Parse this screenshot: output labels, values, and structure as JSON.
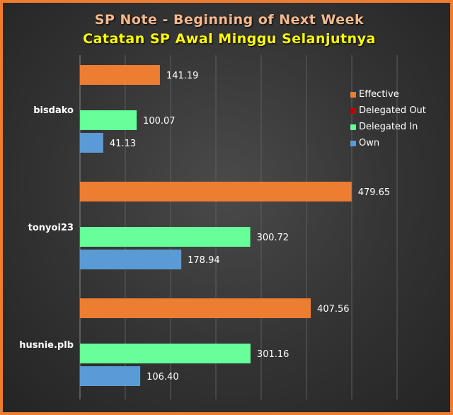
{
  "chart_data": {
    "type": "bar",
    "orientation": "horizontal",
    "title": "SP Note - Beginning of Next Week",
    "subtitle": "Catatan SP Awal Minggu Selanjutnya",
    "categories": [
      "bisdako",
      "tonyoi23",
      "husnie.plb"
    ],
    "series": [
      {
        "name": "Effective",
        "color": "#ed7d31",
        "values": [
          141.19,
          479.65,
          407.56
        ],
        "labels": [
          "141.19",
          "479.65",
          "407.56"
        ]
      },
      {
        "name": "Delegated Out",
        "color": "#c00000",
        "values": [
          0,
          0,
          0
        ],
        "labels": [
          "",
          "",
          ""
        ]
      },
      {
        "name": "Delegated In",
        "color": "#66ff99",
        "values": [
          100.07,
          300.72,
          301.16
        ],
        "labels": [
          "100.07",
          "300.72",
          "301.16"
        ]
      },
      {
        "name": "Own",
        "color": "#5b9bd5",
        "values": [
          41.13,
          178.94,
          106.4
        ],
        "labels": [
          "41.13",
          "178.94",
          "106.40"
        ]
      }
    ],
    "xlim": [
      0,
      600
    ],
    "grid": true,
    "legend_position": "top-right"
  }
}
